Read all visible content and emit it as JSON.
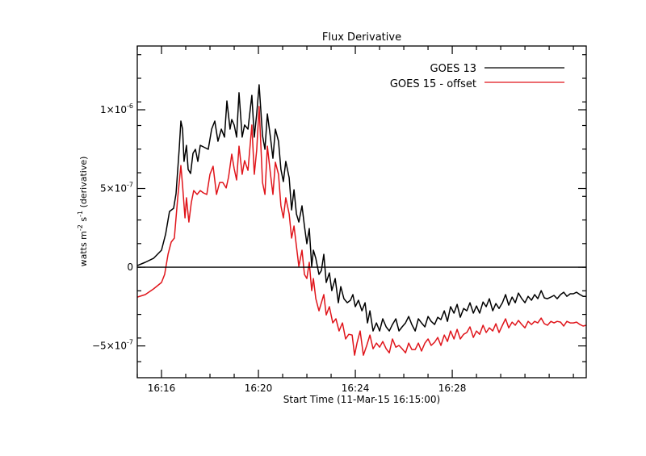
{
  "chart_data": {
    "type": "line",
    "title": "Flux Derivative",
    "xlabel": "Start Time (11-Mar-15 16:15:00)",
    "ylabel_parts": {
      "base": "watts m",
      "exp1": "-2",
      "mid": " s",
      "exp2": "-1",
      "tail": " (derivative)"
    },
    "x_units": "minutes after 16:15:00",
    "y_units": "1e-7 watts m^-2 s^-1",
    "xlim": [
      0,
      18.53
    ],
    "ylim": [
      -7.02,
      14.05
    ],
    "x_ticks": [
      {
        "value": 1,
        "label": "16:16"
      },
      {
        "value": 5,
        "label": "16:20"
      },
      {
        "value": 9,
        "label": "16:24"
      },
      {
        "value": 13,
        "label": "16:28"
      }
    ],
    "x_minor_step": 1,
    "y_ticks": [
      {
        "value": 10,
        "label_base": "1×10",
        "label_exp": "-6"
      },
      {
        "value": 5,
        "label_base": "5×10",
        "label_exp": "-7"
      },
      {
        "value": 0,
        "label_base": "0",
        "label_exp": ""
      },
      {
        "value": -5,
        "label_base": "−5×10",
        "label_exp": "-7"
      }
    ],
    "y_minor_step": 1.5,
    "zero_line": true,
    "legend_position": "top-right",
    "series": [
      {
        "name": "GOES 13",
        "color": "#000000",
        "points": [
          [
            0,
            0.1
          ],
          [
            0.33,
            0.31
          ],
          [
            0.67,
            0.56
          ],
          [
            1,
            1.08
          ],
          [
            1.17,
            2.1
          ],
          [
            1.33,
            3.54
          ],
          [
            1.5,
            3.74
          ],
          [
            1.6,
            4.67
          ],
          [
            1.73,
            7.49
          ],
          [
            1.8,
            9.28
          ],
          [
            1.87,
            8.77
          ],
          [
            1.93,
            6.72
          ],
          [
            2.03,
            7.74
          ],
          [
            2.1,
            6.21
          ],
          [
            2.2,
            5.95
          ],
          [
            2.3,
            7.23
          ],
          [
            2.4,
            7.49
          ],
          [
            2.5,
            6.72
          ],
          [
            2.6,
            7.74
          ],
          [
            2.73,
            7.64
          ],
          [
            2.93,
            7.49
          ],
          [
            3.07,
            8.77
          ],
          [
            3.2,
            9.28
          ],
          [
            3.33,
            8
          ],
          [
            3.47,
            8.77
          ],
          [
            3.6,
            8.26
          ],
          [
            3.7,
            10.56
          ],
          [
            3.83,
            8.77
          ],
          [
            3.9,
            9.38
          ],
          [
            4,
            9.03
          ],
          [
            4.1,
            8.26
          ],
          [
            4.2,
            11.08
          ],
          [
            4.33,
            8.26
          ],
          [
            4.43,
            9.03
          ],
          [
            4.57,
            8.77
          ],
          [
            4.73,
            10.92
          ],
          [
            4.83,
            8.26
          ],
          [
            4.93,
            9.74
          ],
          [
            5.03,
            11.59
          ],
          [
            5.17,
            8.36
          ],
          [
            5.27,
            7.49
          ],
          [
            5.37,
            9.74
          ],
          [
            5.5,
            8.21
          ],
          [
            5.6,
            6.92
          ],
          [
            5.7,
            8.77
          ],
          [
            5.83,
            8
          ],
          [
            5.93,
            6.21
          ],
          [
            6.03,
            5.44
          ],
          [
            6.13,
            6.72
          ],
          [
            6.27,
            5.69
          ],
          [
            6.37,
            3.64
          ],
          [
            6.47,
            4.92
          ],
          [
            6.57,
            3.38
          ],
          [
            6.67,
            2.87
          ],
          [
            6.8,
            3.9
          ],
          [
            6.9,
            2.62
          ],
          [
            7,
            1.49
          ],
          [
            7.1,
            2.46
          ],
          [
            7.2,
            0.05
          ],
          [
            7.27,
            1.08
          ],
          [
            7.37,
            0.56
          ],
          [
            7.5,
            -0.46
          ],
          [
            7.6,
            -0.21
          ],
          [
            7.7,
            0.82
          ],
          [
            7.8,
            -0.97
          ],
          [
            7.93,
            -0.36
          ],
          [
            8.03,
            -1.49
          ],
          [
            8.17,
            -0.72
          ],
          [
            8.3,
            -2.26
          ],
          [
            8.4,
            -1.23
          ],
          [
            8.53,
            -2
          ],
          [
            8.67,
            -2.26
          ],
          [
            8.8,
            -2.1
          ],
          [
            8.9,
            -1.74
          ],
          [
            9,
            -2.51
          ],
          [
            9.13,
            -2.1
          ],
          [
            9.27,
            -2.77
          ],
          [
            9.4,
            -2.26
          ],
          [
            9.5,
            -3.54
          ],
          [
            9.6,
            -2.77
          ],
          [
            9.73,
            -4.05
          ],
          [
            9.87,
            -3.54
          ],
          [
            10,
            -4.05
          ],
          [
            10.13,
            -3.28
          ],
          [
            10.27,
            -3.79
          ],
          [
            10.4,
            -4.05
          ],
          [
            10.53,
            -3.64
          ],
          [
            10.67,
            -3.28
          ],
          [
            10.8,
            -4.05
          ],
          [
            10.93,
            -3.79
          ],
          [
            11.07,
            -3.54
          ],
          [
            11.2,
            -3.13
          ],
          [
            11.33,
            -3.64
          ],
          [
            11.47,
            -4.05
          ],
          [
            11.6,
            -3.28
          ],
          [
            11.73,
            -3.54
          ],
          [
            11.87,
            -3.79
          ],
          [
            12,
            -3.13
          ],
          [
            12.13,
            -3.44
          ],
          [
            12.27,
            -3.64
          ],
          [
            12.4,
            -3.18
          ],
          [
            12.53,
            -3.33
          ],
          [
            12.67,
            -2.77
          ],
          [
            12.8,
            -3.44
          ],
          [
            12.93,
            -2.51
          ],
          [
            13.07,
            -2.92
          ],
          [
            13.2,
            -2.36
          ],
          [
            13.33,
            -3.18
          ],
          [
            13.47,
            -2.62
          ],
          [
            13.6,
            -2.77
          ],
          [
            13.73,
            -2.26
          ],
          [
            13.87,
            -2.92
          ],
          [
            14,
            -2.46
          ],
          [
            14.13,
            -2.92
          ],
          [
            14.27,
            -2.21
          ],
          [
            14.4,
            -2.51
          ],
          [
            14.53,
            -2
          ],
          [
            14.67,
            -2.77
          ],
          [
            14.8,
            -2.31
          ],
          [
            14.93,
            -2.62
          ],
          [
            15.07,
            -2.26
          ],
          [
            15.2,
            -1.74
          ],
          [
            15.33,
            -2.41
          ],
          [
            15.47,
            -1.9
          ],
          [
            15.6,
            -2.26
          ],
          [
            15.73,
            -1.64
          ],
          [
            15.87,
            -2
          ],
          [
            16,
            -2.26
          ],
          [
            16.13,
            -1.85
          ],
          [
            16.27,
            -2.1
          ],
          [
            16.4,
            -1.74
          ],
          [
            16.53,
            -2
          ],
          [
            16.67,
            -1.49
          ],
          [
            16.8,
            -1.95
          ],
          [
            16.93,
            -2
          ],
          [
            17.07,
            -1.9
          ],
          [
            17.2,
            -1.79
          ],
          [
            17.33,
            -2
          ],
          [
            17.47,
            -1.74
          ],
          [
            17.6,
            -1.59
          ],
          [
            17.73,
            -1.85
          ],
          [
            17.87,
            -1.69
          ],
          [
            18,
            -1.69
          ],
          [
            18.13,
            -1.59
          ],
          [
            18.27,
            -1.74
          ],
          [
            18.4,
            -1.85
          ],
          [
            18.53,
            -1.85
          ]
        ]
      },
      {
        "name": "GOES 15 - offset",
        "color": "#e0151b",
        "points": [
          [
            0,
            -1.9
          ],
          [
            0.33,
            -1.74
          ],
          [
            0.67,
            -1.38
          ],
          [
            1,
            -0.97
          ],
          [
            1.13,
            -0.46
          ],
          [
            1.27,
            0.82
          ],
          [
            1.4,
            1.59
          ],
          [
            1.53,
            1.85
          ],
          [
            1.67,
            4.41
          ],
          [
            1.8,
            6.46
          ],
          [
            1.87,
            5.18
          ],
          [
            1.97,
            3.13
          ],
          [
            2.03,
            4.41
          ],
          [
            2.13,
            2.87
          ],
          [
            2.23,
            4.1
          ],
          [
            2.33,
            4.87
          ],
          [
            2.47,
            4.62
          ],
          [
            2.6,
            4.87
          ],
          [
            2.73,
            4.72
          ],
          [
            2.87,
            4.62
          ],
          [
            3,
            5.9
          ],
          [
            3.13,
            6.41
          ],
          [
            3.27,
            4.62
          ],
          [
            3.4,
            5.38
          ],
          [
            3.53,
            5.38
          ],
          [
            3.67,
            5.03
          ],
          [
            3.77,
            5.74
          ],
          [
            3.9,
            7.18
          ],
          [
            4,
            6.26
          ],
          [
            4.1,
            5.54
          ],
          [
            4.2,
            7.69
          ],
          [
            4.33,
            5.9
          ],
          [
            4.43,
            6.77
          ],
          [
            4.57,
            6.15
          ],
          [
            4.73,
            9.03
          ],
          [
            4.83,
            5.9
          ],
          [
            4.93,
            7.44
          ],
          [
            5.03,
            10.21
          ],
          [
            5.17,
            5.38
          ],
          [
            5.27,
            4.62
          ],
          [
            5.37,
            7.69
          ],
          [
            5.5,
            5.9
          ],
          [
            5.6,
            4.62
          ],
          [
            5.7,
            6.67
          ],
          [
            5.83,
            5.9
          ],
          [
            5.93,
            3.9
          ],
          [
            6.03,
            3.13
          ],
          [
            6.13,
            4.41
          ],
          [
            6.27,
            3.38
          ],
          [
            6.37,
            1.85
          ],
          [
            6.47,
            2.62
          ],
          [
            6.57,
            1.33
          ],
          [
            6.67,
            0.05
          ],
          [
            6.8,
            1.08
          ],
          [
            6.9,
            -0.46
          ],
          [
            7,
            -0.72
          ],
          [
            7.1,
            0.31
          ],
          [
            7.2,
            -1.49
          ],
          [
            7.27,
            -0.72
          ],
          [
            7.37,
            -2
          ],
          [
            7.5,
            -2.77
          ],
          [
            7.6,
            -2.26
          ],
          [
            7.7,
            -1.74
          ],
          [
            7.8,
            -3.03
          ],
          [
            7.93,
            -2.51
          ],
          [
            8.07,
            -3.54
          ],
          [
            8.2,
            -3.28
          ],
          [
            8.33,
            -4.05
          ],
          [
            8.47,
            -3.54
          ],
          [
            8.6,
            -4.56
          ],
          [
            8.73,
            -4.26
          ],
          [
            8.87,
            -4.31
          ],
          [
            8.97,
            -5.59
          ],
          [
            9.07,
            -4.82
          ],
          [
            9.2,
            -4.05
          ],
          [
            9.33,
            -5.59
          ],
          [
            9.47,
            -4.97
          ],
          [
            9.6,
            -4.31
          ],
          [
            9.73,
            -5.18
          ],
          [
            9.87,
            -4.82
          ],
          [
            10,
            -5.08
          ],
          [
            10.13,
            -4.72
          ],
          [
            10.27,
            -5.18
          ],
          [
            10.4,
            -5.44
          ],
          [
            10.53,
            -4.56
          ],
          [
            10.67,
            -5.08
          ],
          [
            10.8,
            -4.97
          ],
          [
            10.93,
            -5.18
          ],
          [
            11.07,
            -5.44
          ],
          [
            11.2,
            -4.82
          ],
          [
            11.33,
            -5.23
          ],
          [
            11.47,
            -5.23
          ],
          [
            11.6,
            -4.82
          ],
          [
            11.73,
            -5.33
          ],
          [
            11.87,
            -4.82
          ],
          [
            12,
            -4.56
          ],
          [
            12.13,
            -4.97
          ],
          [
            12.27,
            -4.77
          ],
          [
            12.4,
            -4.46
          ],
          [
            12.53,
            -4.97
          ],
          [
            12.67,
            -4.31
          ],
          [
            12.8,
            -4.72
          ],
          [
            12.93,
            -4.05
          ],
          [
            13.07,
            -4.56
          ],
          [
            13.2,
            -3.95
          ],
          [
            13.33,
            -4.56
          ],
          [
            13.47,
            -4.26
          ],
          [
            13.6,
            -4.15
          ],
          [
            13.73,
            -3.79
          ],
          [
            13.87,
            -4.46
          ],
          [
            14,
            -4.05
          ],
          [
            14.13,
            -4.26
          ],
          [
            14.27,
            -3.69
          ],
          [
            14.4,
            -4.15
          ],
          [
            14.53,
            -3.85
          ],
          [
            14.67,
            -4.05
          ],
          [
            14.8,
            -3.59
          ],
          [
            14.93,
            -4.15
          ],
          [
            15.07,
            -3.69
          ],
          [
            15.2,
            -3.28
          ],
          [
            15.33,
            -3.85
          ],
          [
            15.47,
            -3.49
          ],
          [
            15.6,
            -3.69
          ],
          [
            15.73,
            -3.38
          ],
          [
            15.87,
            -3.64
          ],
          [
            16,
            -3.85
          ],
          [
            16.13,
            -3.44
          ],
          [
            16.27,
            -3.64
          ],
          [
            16.4,
            -3.44
          ],
          [
            16.53,
            -3.54
          ],
          [
            16.67,
            -3.23
          ],
          [
            16.8,
            -3.59
          ],
          [
            16.93,
            -3.69
          ],
          [
            17.07,
            -3.44
          ],
          [
            17.2,
            -3.54
          ],
          [
            17.33,
            -3.44
          ],
          [
            17.47,
            -3.49
          ],
          [
            17.6,
            -3.74
          ],
          [
            17.73,
            -3.44
          ],
          [
            17.87,
            -3.54
          ],
          [
            18,
            -3.54
          ],
          [
            18.13,
            -3.49
          ],
          [
            18.27,
            -3.64
          ],
          [
            18.4,
            -3.74
          ],
          [
            18.53,
            -3.69
          ]
        ]
      }
    ]
  }
}
